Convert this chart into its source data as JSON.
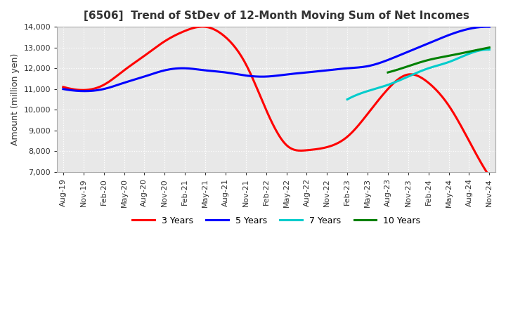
{
  "title": "[6506]  Trend of StDev of 12-Month Moving Sum of Net Incomes",
  "ylabel": "Amount (million yen)",
  "ylim": [
    7000,
    14000
  ],
  "yticks": [
    7000,
    8000,
    9000,
    10000,
    11000,
    12000,
    13000,
    14000
  ],
  "legend": [
    "3 Years",
    "5 Years",
    "7 Years",
    "10 Years"
  ],
  "colors": [
    "#ff0000",
    "#0000ff",
    "#00cccc",
    "#008000"
  ],
  "x_labels": [
    "Aug-19",
    "Nov-19",
    "Feb-20",
    "May-20",
    "Aug-20",
    "Nov-20",
    "Feb-21",
    "May-21",
    "Aug-21",
    "Nov-21",
    "Feb-22",
    "May-22",
    "Aug-22",
    "Nov-22",
    "Feb-23",
    "May-23",
    "Aug-23",
    "Nov-23",
    "Feb-24",
    "May-24",
    "Aug-24",
    "Nov-24"
  ],
  "y_3yr": [
    11100,
    10950,
    11200,
    11900,
    12600,
    13300,
    13800,
    14000,
    13500,
    12200,
    10000,
    8300,
    8050,
    8200,
    8700,
    9800,
    11000,
    11700,
    11300,
    10200,
    8500,
    6800
  ],
  "y_5yr": [
    11000,
    10900,
    11000,
    11300,
    11600,
    11900,
    12000,
    11900,
    11800,
    11650,
    11600,
    11700,
    11800,
    11900,
    12000,
    12100,
    12400,
    12800,
    13200,
    13600,
    13900,
    14000
  ],
  "y_7yr": [
    null,
    null,
    null,
    null,
    null,
    null,
    null,
    null,
    null,
    null,
    null,
    null,
    null,
    null,
    10500,
    10900,
    11200,
    11600,
    12000,
    12300,
    12700,
    12900
  ],
  "y_10yr": [
    null,
    null,
    null,
    null,
    null,
    null,
    null,
    null,
    null,
    null,
    null,
    null,
    null,
    null,
    null,
    null,
    11800,
    12100,
    12400,
    12600,
    12800,
    13000
  ],
  "bg_color": "#ffffff",
  "plot_bg_color": "#e8e8e8"
}
